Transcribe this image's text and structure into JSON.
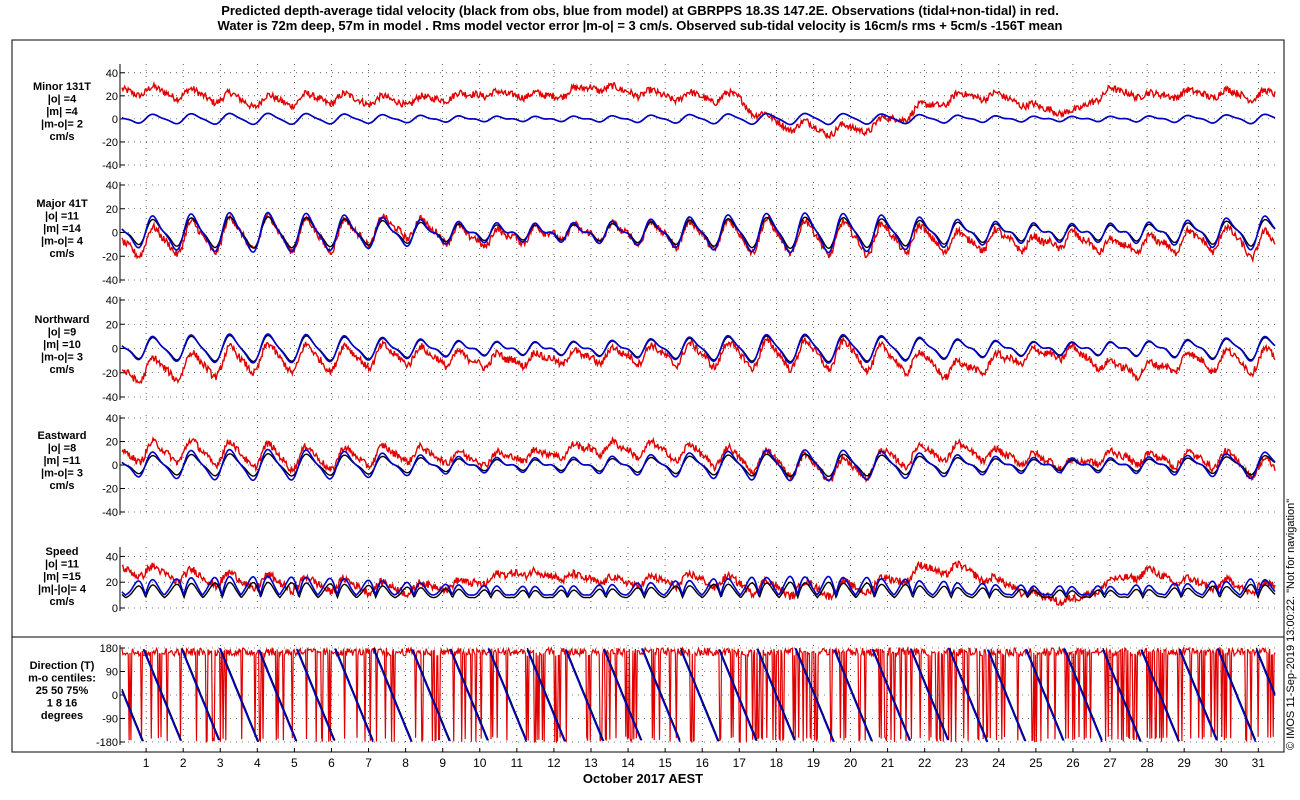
{
  "title": {
    "line1": "Predicted depth-average tidal velocity (black from obs, blue from model) at GBRPPS 18.3S 147.2E. Observations (tidal+non-tidal) in red.",
    "line2": "Water is 72m deep, 57m in model . Rms model vector error |m-o| = 3 cm/s. Observed sub-tidal velocity is 16cm/s rms + 5cm/s -156T mean"
  },
  "side_note": "© IMOS 11-Sep-2019 13:00:22. \"Not for navigation\"",
  "colors": {
    "observed": "#e00000",
    "obs_tidal": "#000000",
    "model": "#0000cc",
    "grid": "#000000"
  },
  "chart_data": {
    "type": "line",
    "xlabel": "October 2017 AEST",
    "x_ticks": [
      "1",
      "2",
      "3",
      "4",
      "5",
      "6",
      "7",
      "8",
      "9",
      "10",
      "11",
      "12",
      "13",
      "14",
      "15",
      "16",
      "17",
      "18",
      "19",
      "20",
      "21",
      "22",
      "23",
      "24",
      "25",
      "26",
      "27",
      "28",
      "29",
      "30",
      "31"
    ],
    "xlim_days": [
      0.35,
      31.45
    ],
    "grid": true,
    "series_legend": {
      "black": "tidal from obs",
      "blue": "tidal from model",
      "red": "observations (tidal+non-tidal)"
    },
    "panels": [
      {
        "id": "minor",
        "label_lines": [
          "Minor 131T",
          "|o| =4",
          "|m| =4",
          "|m-o|= 2",
          "cm/s"
        ],
        "ylim": [
          -40,
          45
        ],
        "y_ticks": [
          40,
          20,
          0,
          -20,
          -40
        ],
        "tide_amplitude": {
          "obs": 4,
          "model": 4
        },
        "observed_keypoints": [
          [
            0.4,
            25
          ],
          [
            2,
            22
          ],
          [
            4,
            15
          ],
          [
            6,
            18
          ],
          [
            8,
            15
          ],
          [
            10,
            22
          ],
          [
            12,
            20
          ],
          [
            13,
            28
          ],
          [
            15,
            20
          ],
          [
            17,
            18
          ],
          [
            17.8,
            -2
          ],
          [
            19,
            -8
          ],
          [
            20,
            -10
          ],
          [
            21,
            -2
          ],
          [
            22,
            10
          ],
          [
            23,
            20
          ],
          [
            24,
            20
          ],
          [
            25,
            10
          ],
          [
            26,
            5
          ],
          [
            27,
            25
          ],
          [
            28,
            20
          ],
          [
            29,
            22
          ],
          [
            30,
            22
          ],
          [
            31.4,
            20
          ]
        ]
      },
      {
        "id": "major",
        "label_lines": [
          "Major 41T",
          "|o| =11",
          "|m| =14",
          "|m-o|= 4",
          "cm/s"
        ],
        "ylim": [
          -40,
          40
        ],
        "y_ticks": [
          40,
          20,
          0,
          -20,
          -40
        ],
        "tide_amplitude": {
          "obs": 11,
          "model": 14
        },
        "observed_keypoints": [
          [
            0.4,
            -10
          ],
          [
            2,
            -5
          ],
          [
            4,
            0
          ],
          [
            6,
            -3
          ],
          [
            8,
            5
          ],
          [
            10,
            -5
          ],
          [
            12,
            0
          ],
          [
            14,
            0
          ],
          [
            16,
            -2
          ],
          [
            18,
            -3
          ],
          [
            20,
            -5
          ],
          [
            22,
            -5
          ],
          [
            23,
            -8
          ],
          [
            24,
            -5
          ],
          [
            25,
            -10
          ],
          [
            26,
            -5
          ],
          [
            27,
            -12
          ],
          [
            28,
            -10
          ],
          [
            30,
            -5
          ],
          [
            31.4,
            -12
          ]
        ]
      },
      {
        "id": "northward",
        "label_lines": [
          "Northward",
          "|o| =9",
          "|m| =10",
          "|m-o|= 3",
          "cm/s"
        ],
        "ylim": [
          -40,
          40
        ],
        "y_ticks": [
          40,
          20,
          0,
          -20,
          -40
        ],
        "tide_amplitude": {
          "obs": 9,
          "model": 10
        },
        "observed_keypoints": [
          [
            0.4,
            -20
          ],
          [
            2,
            -15
          ],
          [
            4,
            -8
          ],
          [
            6,
            -8
          ],
          [
            8,
            -5
          ],
          [
            10,
            -10
          ],
          [
            12,
            -8
          ],
          [
            14,
            -5
          ],
          [
            16,
            -5
          ],
          [
            18,
            -5
          ],
          [
            20,
            -5
          ],
          [
            22,
            -12
          ],
          [
            23,
            -18
          ],
          [
            24,
            -10
          ],
          [
            25,
            -5
          ],
          [
            26,
            -3
          ],
          [
            27,
            -15
          ],
          [
            28,
            -18
          ],
          [
            29,
            -10
          ],
          [
            31.4,
            -10
          ]
        ]
      },
      {
        "id": "eastward",
        "label_lines": [
          "Eastward",
          "|o| =8",
          "|m| =11",
          "|m-o|= 3",
          "cm/s"
        ],
        "ylim": [
          -40,
          40
        ],
        "y_ticks": [
          40,
          20,
          0,
          -20,
          -40
        ],
        "tide_amplitude": {
          "obs": 8,
          "model": 11
        },
        "observed_keypoints": [
          [
            0.4,
            10
          ],
          [
            2,
            12
          ],
          [
            4,
            8
          ],
          [
            6,
            5
          ],
          [
            8,
            10
          ],
          [
            10,
            5
          ],
          [
            12,
            10
          ],
          [
            13,
            15
          ],
          [
            15,
            12
          ],
          [
            17,
            5
          ],
          [
            18,
            2
          ],
          [
            20,
            -5
          ],
          [
            21,
            5
          ],
          [
            22,
            10
          ],
          [
            23,
            12
          ],
          [
            24,
            8
          ],
          [
            25,
            5
          ],
          [
            26,
            0
          ],
          [
            27,
            8
          ],
          [
            28,
            5
          ],
          [
            30,
            5
          ],
          [
            31.4,
            -5
          ]
        ]
      },
      {
        "id": "speed",
        "label_lines": [
          "Speed",
          "|o| =11",
          "|m| =15",
          "|m|-|o|= 4",
          "cm/s"
        ],
        "ylim": [
          0,
          45
        ],
        "y_ticks": [
          40,
          20,
          0
        ],
        "tide_amplitude": {
          "obs": 11,
          "model": 15
        },
        "observed_keypoints": [
          [
            0.4,
            30
          ],
          [
            2,
            25
          ],
          [
            4,
            20
          ],
          [
            6,
            18
          ],
          [
            8,
            15
          ],
          [
            10,
            20
          ],
          [
            11,
            28
          ],
          [
            12,
            25
          ],
          [
            14,
            20
          ],
          [
            16,
            22
          ],
          [
            18,
            15
          ],
          [
            20,
            15
          ],
          [
            21,
            20
          ],
          [
            22,
            30
          ],
          [
            23,
            30
          ],
          [
            24,
            20
          ],
          [
            25,
            10
          ],
          [
            26,
            5
          ],
          [
            27,
            20
          ],
          [
            28,
            28
          ],
          [
            29,
            20
          ],
          [
            30,
            18
          ],
          [
            31.4,
            15
          ]
        ]
      },
      {
        "id": "direction",
        "label_lines": [
          "Direction (T)",
          "m-o centiles:",
          "25  50  75%",
          "1   8  16",
          "degrees"
        ],
        "ylim": [
          -180,
          180
        ],
        "y_ticks": [
          180,
          90,
          0,
          -90,
          -180
        ],
        "observed_direction": "mostly near 180 with excursions to -180"
      }
    ]
  }
}
